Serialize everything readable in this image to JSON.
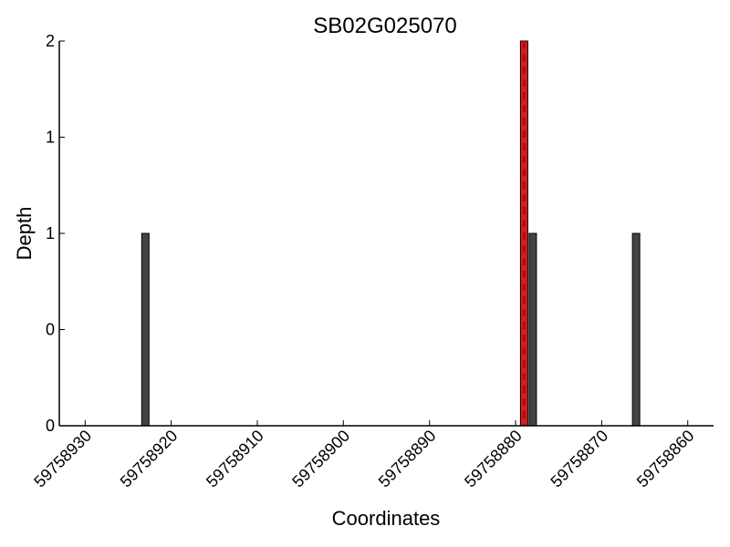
{
  "chart_data": {
    "type": "bar",
    "title": "SB02G025070",
    "xlabel": "Coordinates",
    "ylabel": "Depth",
    "x_axis": {
      "reversed": true,
      "range": [
        59758933,
        59758857
      ],
      "ticks": [
        59758930,
        59758920,
        59758910,
        59758900,
        59758890,
        59758880,
        59758870,
        59758860
      ],
      "tick_labels": [
        "59758930",
        "59758920",
        "59758910",
        "59758900",
        "59758890",
        "59758880",
        "59758870",
        "59758860"
      ]
    },
    "y_axis": {
      "range": [
        0,
        2
      ],
      "tick_labels": [
        "0",
        "0",
        "1",
        "1",
        "2"
      ]
    },
    "grid": false,
    "bars": [
      {
        "x": 59758923,
        "value": 1
      },
      {
        "x": 59758879,
        "value": 2
      },
      {
        "x": 59758878,
        "value": 1
      },
      {
        "x": 59758866,
        "value": 1
      }
    ],
    "marker_line": {
      "x": 59758879,
      "color": "#cc0000",
      "style": "dashed"
    },
    "colors": {
      "bar_fill": "#444444",
      "bar_edge": "#000000",
      "highlight_bar_fill": "#cc2222"
    },
    "highlight_bar_x": 59758879
  }
}
